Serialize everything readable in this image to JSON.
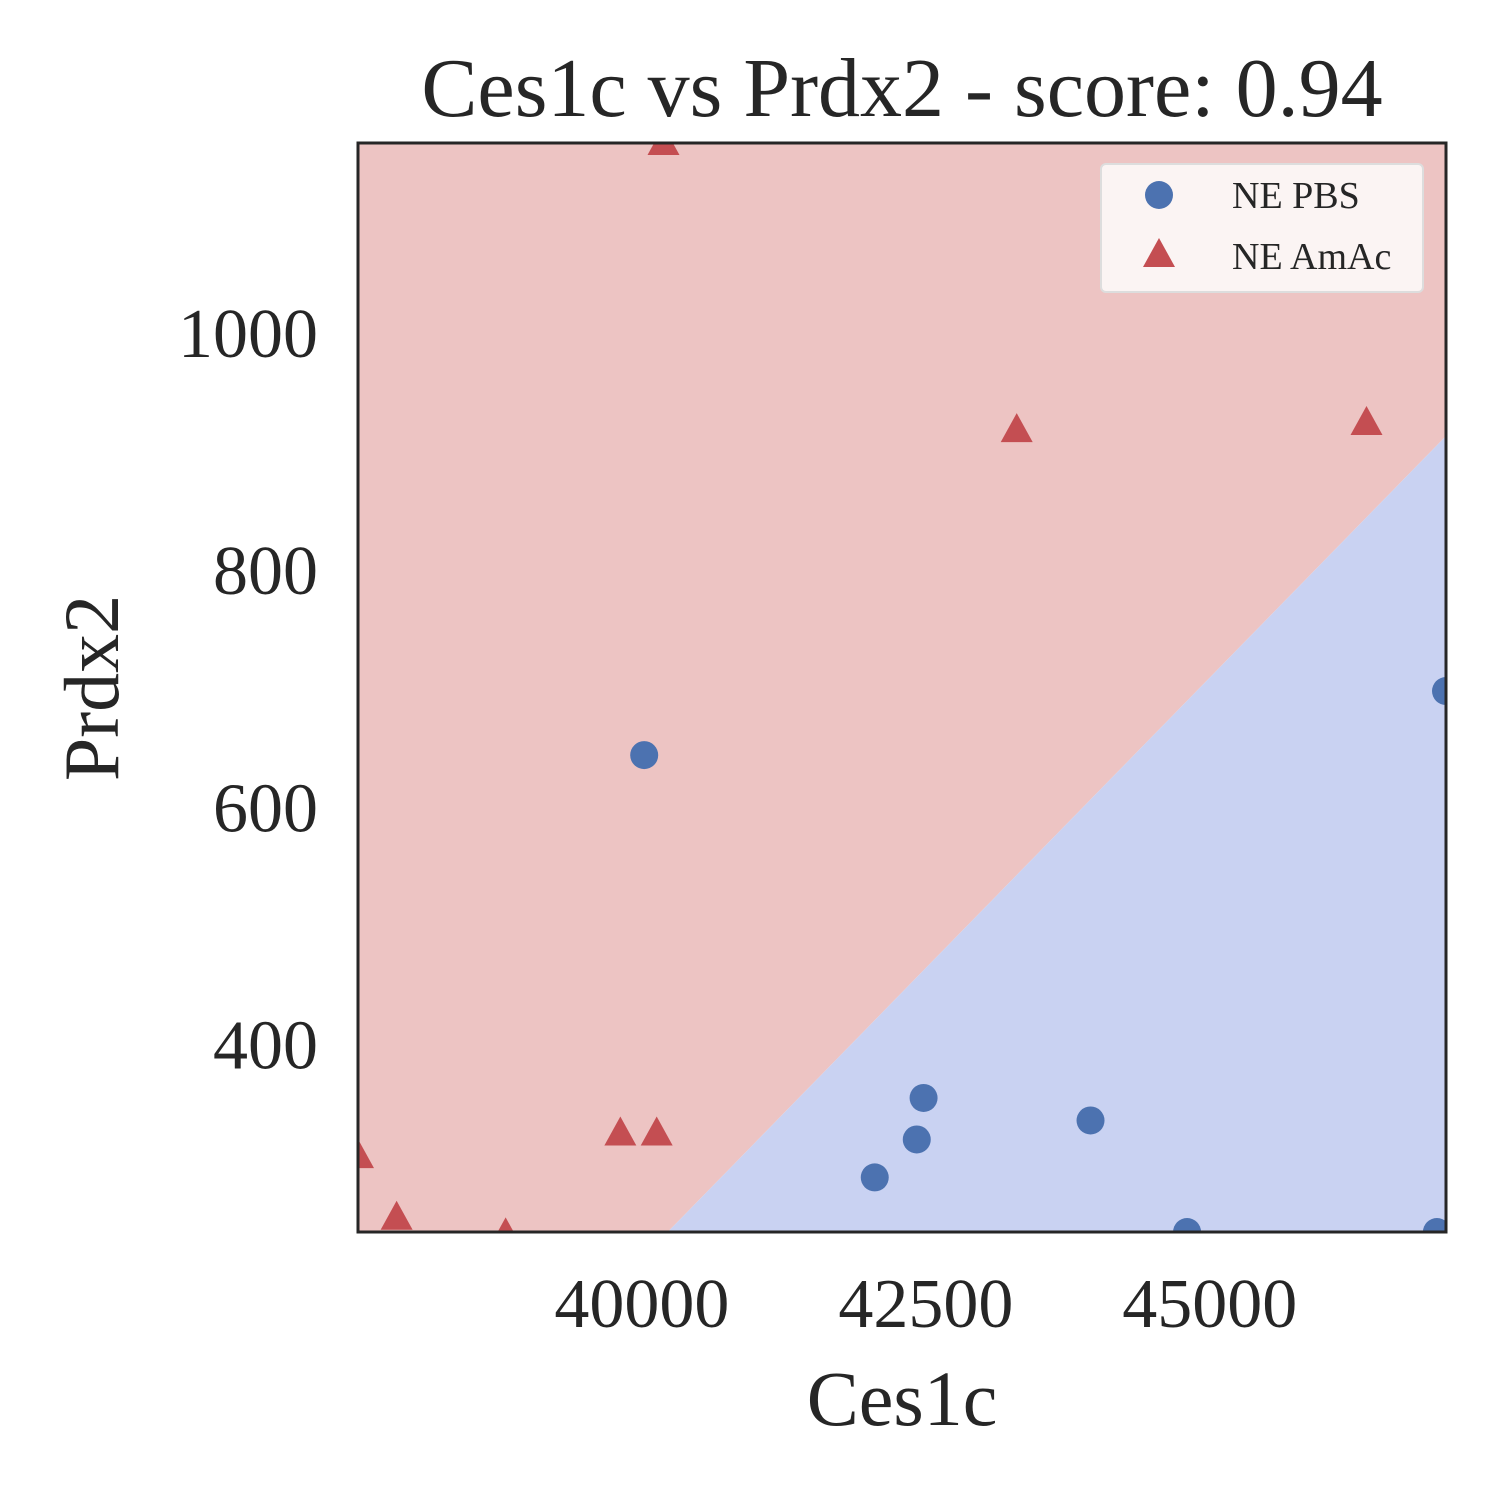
{
  "chart_data": {
    "type": "scatter",
    "title": "Ces1c vs Prdx2 - score: 0.94",
    "xlabel": "Ces1c",
    "ylabel": "Prdx2",
    "xlim": [
      37500,
      47080
    ],
    "ylim": [
      242,
      1160
    ],
    "xticks": [
      40000,
      42500,
      45000
    ],
    "yticks": [
      400,
      600,
      800,
      1000
    ],
    "grid": false,
    "legend_position": "top-right",
    "decision_boundary": {
      "points": [
        [
          40227,
          242
        ],
        [
          47080,
          913
        ]
      ],
      "upper_left_region_color": "#edc4c3",
      "lower_right_region_color": "#c9d2f2",
      "upper_left_class": "NE AmAc",
      "lower_right_class": "NE PBS"
    },
    "series": [
      {
        "name": "NE PBS",
        "marker": "circle",
        "color": "#4c72b0",
        "points": [
          [
            40020,
            644
          ],
          [
            42050,
            288
          ],
          [
            42420,
            320
          ],
          [
            42480,
            355
          ],
          [
            43950,
            336
          ],
          [
            44800,
            242
          ],
          [
            47000,
            242
          ],
          [
            47080,
            698
          ]
        ]
      },
      {
        "name": "NE AmAc",
        "marker": "triangle",
        "color": "#c44e52",
        "points": [
          [
            40190,
            1160
          ],
          [
            43300,
            918
          ],
          [
            46380,
            924
          ],
          [
            37500,
            306
          ],
          [
            37840,
            254
          ],
          [
            38800,
            240
          ],
          [
            39810,
            325
          ],
          [
            40130,
            325
          ]
        ]
      }
    ]
  }
}
